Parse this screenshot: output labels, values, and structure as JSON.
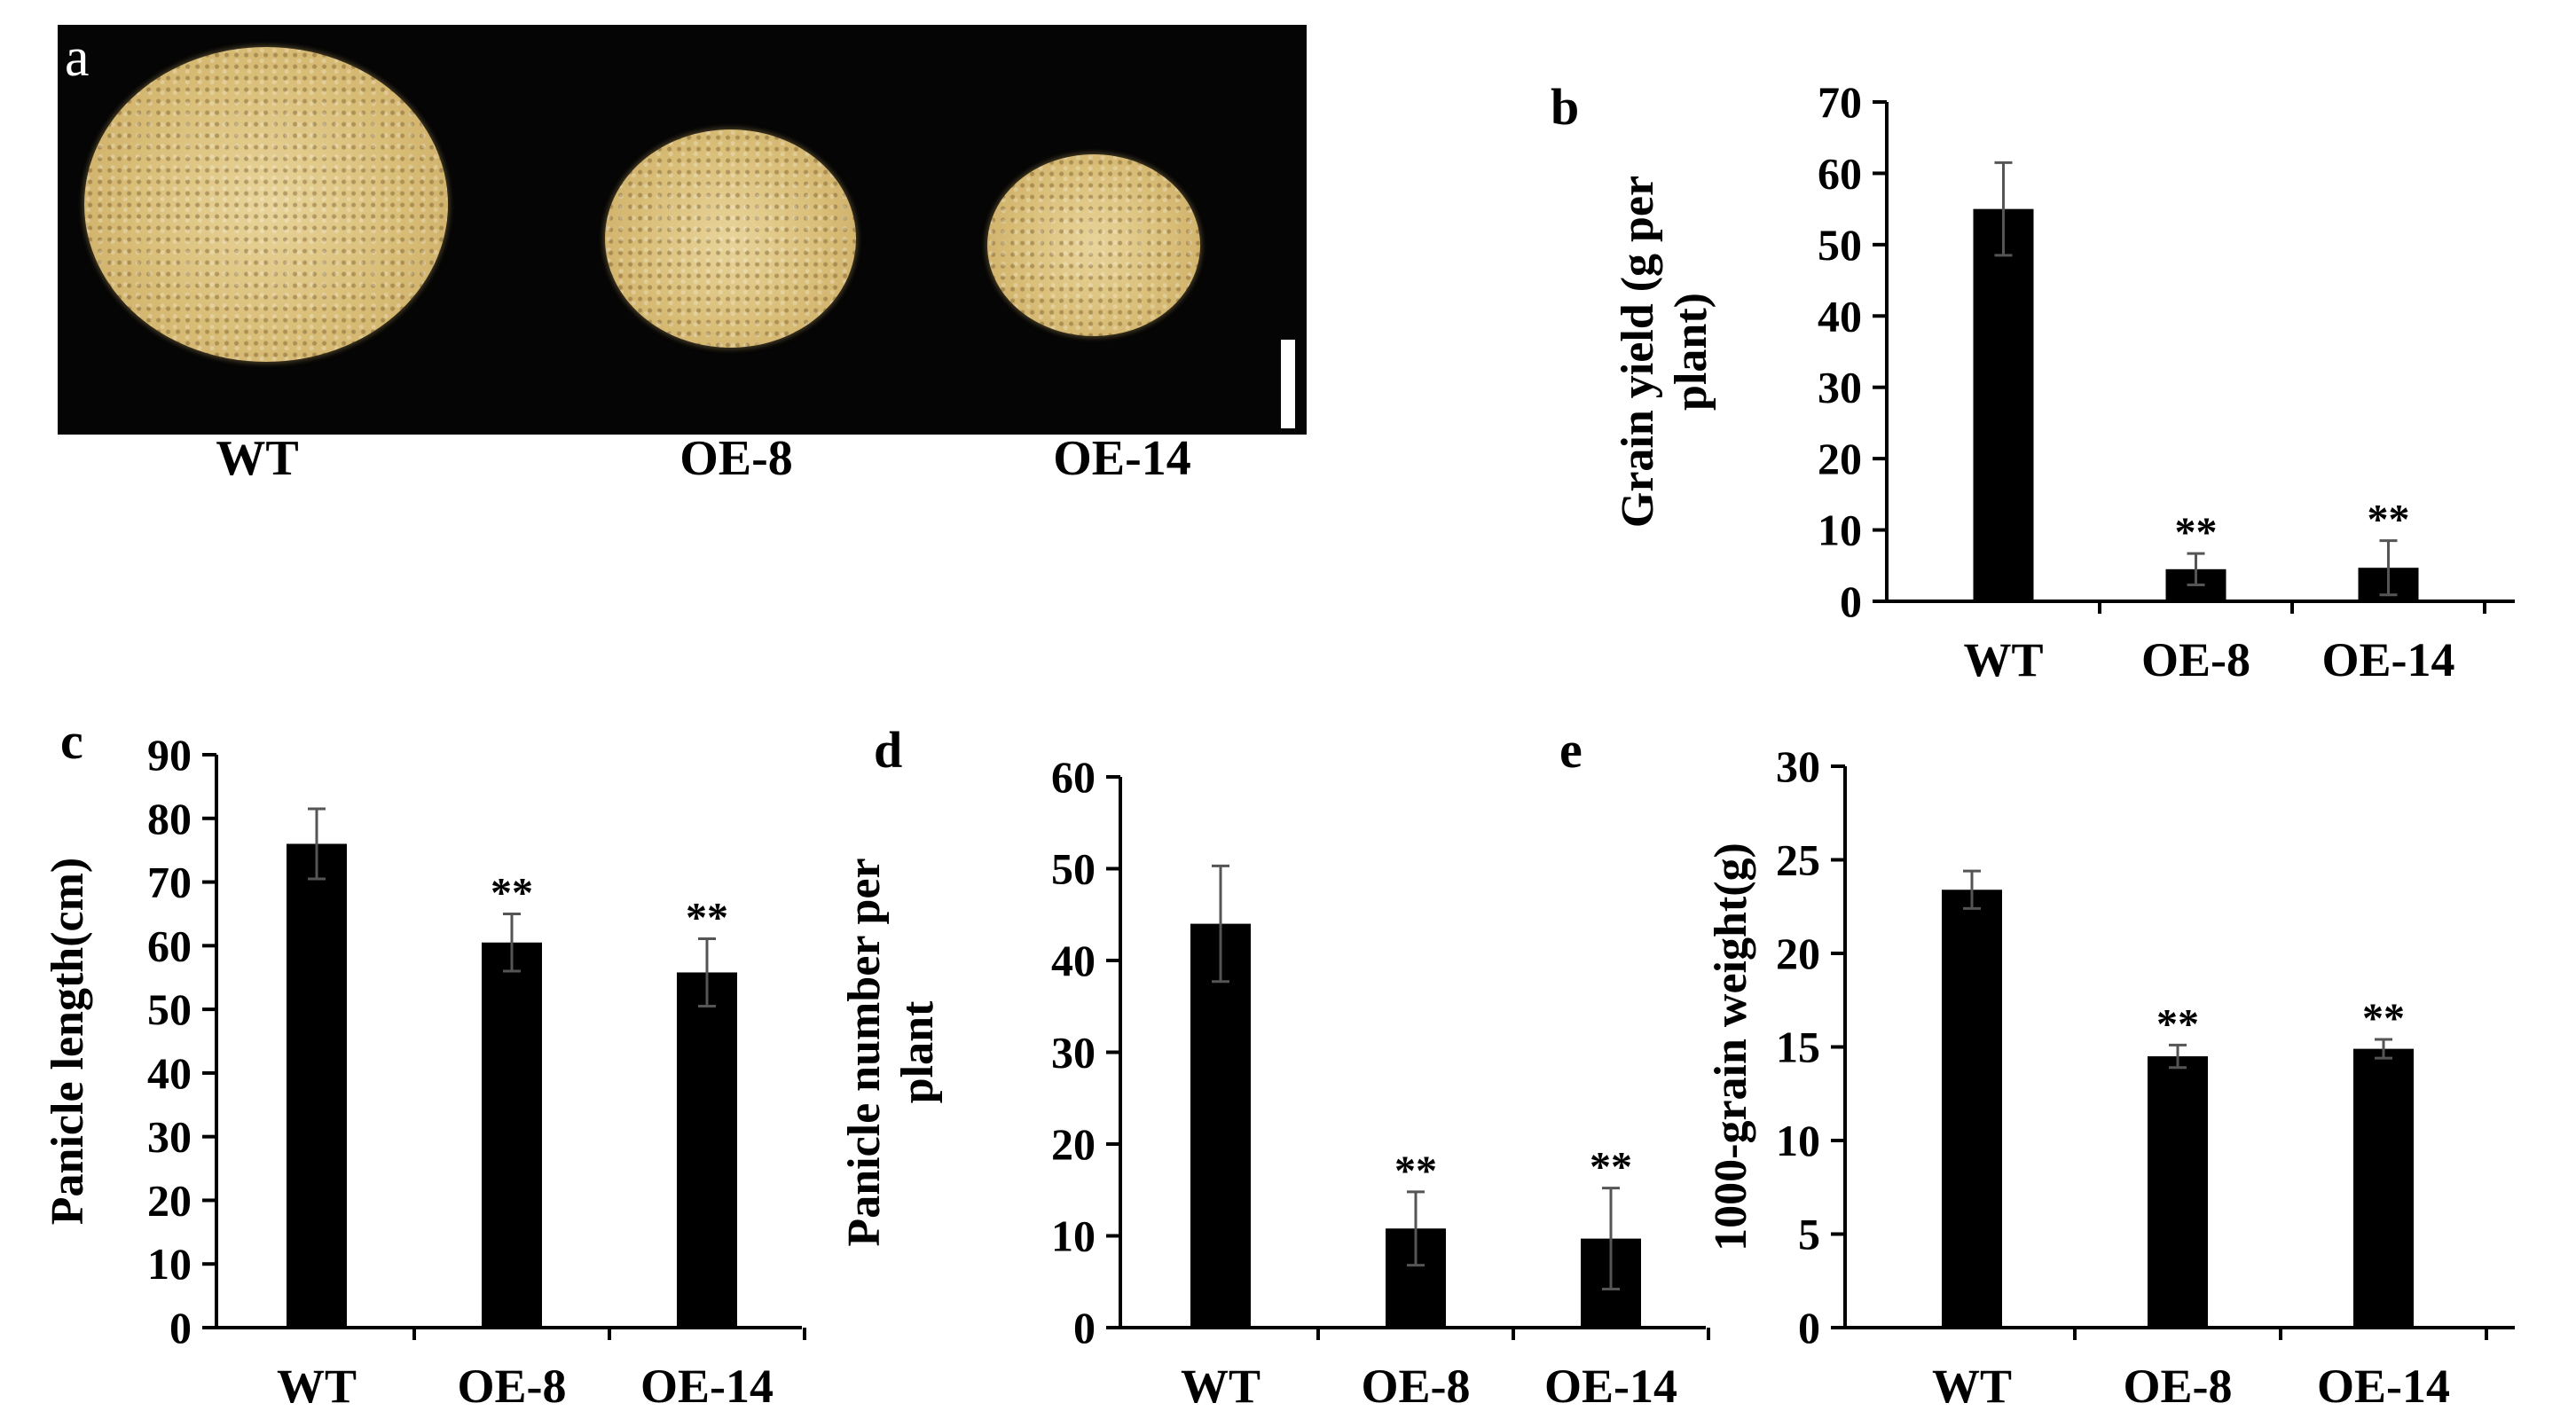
{
  "figure": {
    "panel_a": {
      "letter": "a",
      "labels": [
        "WT",
        "OE-8",
        "OE-14"
      ]
    }
  },
  "chart_data": [
    {
      "panel": "b",
      "type": "bar",
      "categories": [
        "WT",
        "OE-8",
        "OE-14"
      ],
      "values": [
        55,
        4.5,
        4.7
      ],
      "errors": [
        6.5,
        2.2,
        3.8
      ],
      "significance": [
        "",
        "**",
        "**"
      ],
      "ylabel": "Grain yield (g per plant)",
      "ylabel_lines": [
        "Grain yield (g per",
        "plant)"
      ],
      "ylim": [
        0,
        70
      ],
      "yticks": [
        0,
        10,
        20,
        30,
        40,
        50,
        60,
        70
      ]
    },
    {
      "panel": "c",
      "type": "bar",
      "categories": [
        "WT",
        "OE-8",
        "OE-14"
      ],
      "values": [
        76,
        60.5,
        55.8
      ],
      "errors": [
        5.5,
        4.5,
        5.3
      ],
      "significance": [
        "",
        "**",
        "**"
      ],
      "ylabel": "Panicle length(cm)",
      "ylabel_lines": [
        "Panicle length(cm)"
      ],
      "ylim": [
        0,
        90
      ],
      "yticks": [
        0,
        10,
        20,
        30,
        40,
        50,
        60,
        70,
        80,
        90
      ]
    },
    {
      "panel": "d",
      "type": "bar",
      "categories": [
        "WT",
        "OE-8",
        "OE-14"
      ],
      "values": [
        44,
        10.8,
        9.7
      ],
      "errors": [
        6.3,
        4,
        5.5
      ],
      "significance": [
        "",
        "**",
        "**"
      ],
      "ylabel": "Panicle number per plant",
      "ylabel_lines": [
        "Panicle number per",
        "plant"
      ],
      "ylim": [
        0,
        60
      ],
      "yticks": [
        0,
        10,
        20,
        30,
        40,
        50,
        60
      ]
    },
    {
      "panel": "e",
      "type": "bar",
      "categories": [
        "WT",
        "OE-8",
        "OE-14"
      ],
      "values": [
        23.4,
        14.5,
        14.9
      ],
      "errors": [
        1,
        0.6,
        0.5
      ],
      "significance": [
        "",
        "**",
        "**"
      ],
      "ylabel": "1000-grain weight(g)",
      "ylabel_lines": [
        "1000-grain weight(g)"
      ],
      "ylim": [
        0,
        30
      ],
      "yticks": [
        0,
        5,
        10,
        15,
        20,
        25,
        30
      ]
    }
  ]
}
